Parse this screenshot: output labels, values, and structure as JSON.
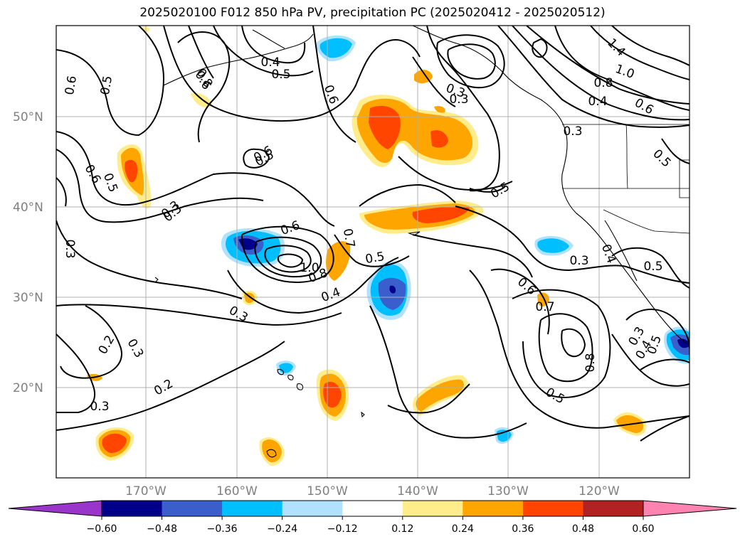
{
  "title": "2025020100 F012 850 hPa PV, precipitation PC (2025020412 - 2025020512)",
  "map": {
    "latitude_labels": [
      "50°N",
      "40°N",
      "30°N",
      "20°N"
    ],
    "longitude_labels": [
      "170°W",
      "160°W",
      "150°W",
      "140°W",
      "130°W",
      "120°W"
    ],
    "grid": true,
    "contour_variable": "850 hPa PV",
    "shaded_variable": "precipitation PC"
  },
  "contour_labels": [
    "0.6",
    "0.5",
    "0.6",
    "0.5",
    "0.3",
    "0.3",
    "0.4",
    "0.5",
    "0.6",
    "0.8",
    "0.6",
    "0.5",
    "0.6",
    "0.5",
    "0.3",
    "0.3",
    "1.4",
    "1.0",
    "0.8",
    "0.6",
    "0.4",
    "0.5",
    "0.3",
    "0.6",
    "0.7",
    "1.0",
    "0.8",
    "0.5",
    "0.4",
    "0.3",
    "0.2",
    "0.3",
    "0.2",
    "0.3",
    "0.3",
    "0.6",
    "0.7",
    "0.8",
    "0.5",
    "0.3",
    "0.4",
    "0.5",
    "0.3",
    "0.4",
    "0.5"
  ],
  "colorbar": {
    "colors": [
      "#9a35cc",
      "#00008b",
      "#3a5fcd",
      "#00bfff",
      "#b0e2ff",
      "#ffffff",
      "#ffec8b",
      "#ffa500",
      "#ff4500",
      "#b22222",
      "#ff83b0"
    ],
    "tick_labels": [
      "−0.60",
      "−0.48",
      "−0.36",
      "−0.24",
      "−0.12",
      "0.12",
      "0.24",
      "0.36",
      "0.48",
      "0.60"
    ],
    "extend": "both"
  }
}
